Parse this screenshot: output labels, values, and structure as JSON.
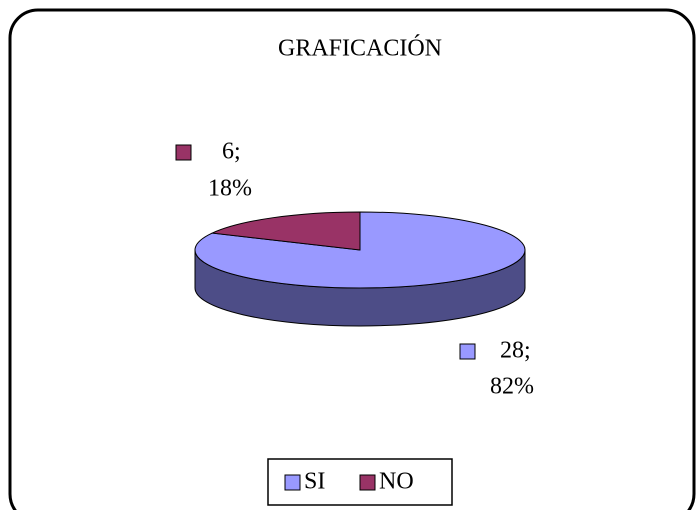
{
  "chart_data": {
    "type": "pie",
    "title": "GRAFICACIÓN",
    "categories": [
      "SI",
      "NO"
    ],
    "values": [
      28,
      6
    ],
    "value_labels": [
      "28;",
      "6;"
    ],
    "percentages": [
      82,
      18
    ],
    "percentage_labels": [
      "82%",
      "18%"
    ],
    "colors": [
      "#9999ff",
      "#993366"
    ],
    "side_colors": [
      "#4d4d87",
      "#5e1f3f"
    ],
    "legend": "bottom"
  }
}
